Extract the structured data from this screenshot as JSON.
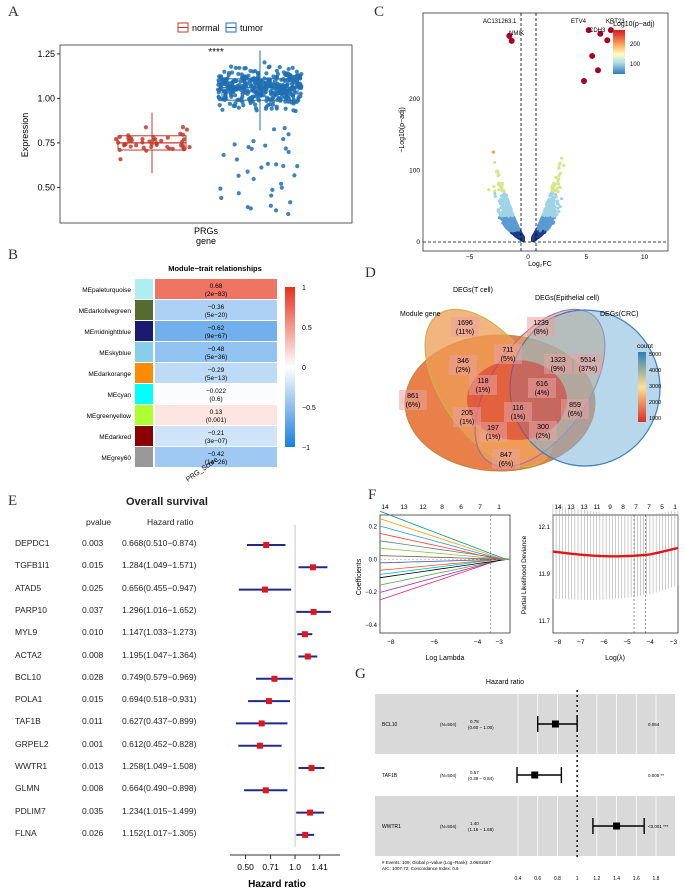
{
  "panels": {
    "A": "A",
    "B": "B",
    "C": "C",
    "D": "D",
    "E": "E",
    "F": "F",
    "G": "G"
  },
  "panelA": {
    "legend_normal": "normal",
    "legend_tumor": "tumor",
    "significance": "****",
    "xlabel": "gene",
    "ylabel": "Expression",
    "xtick": "PRGs",
    "yticks": [
      "0.50",
      "0.75",
      "1.00",
      "1.25"
    ],
    "colors": {
      "normal": "#C0392B",
      "tumor": "#1F6FB2"
    },
    "chart_data": {
      "type": "box",
      "categories": [
        "PRGs"
      ],
      "series": [
        {
          "name": "normal",
          "median": 0.75,
          "q1": 0.71,
          "q3": 0.79,
          "min": 0.58,
          "max": 0.92
        },
        {
          "name": "tumor",
          "median": 1.06,
          "q1": 0.99,
          "q3": 1.11,
          "min": 0.82,
          "max": 1.27
        }
      ],
      "ylim": [
        0.3,
        1.3
      ]
    }
  },
  "panelB": {
    "title": "Module−trait relationships",
    "xlabel": "PRG_Score",
    "legend_ticks": [
      "1",
      "0.5",
      "0",
      "−0.5",
      "−1"
    ],
    "modules": [
      {
        "name": "MEpaleturquoise",
        "color": "#AFEEEE",
        "r": "0.68",
        "p": "(2e−83)",
        "v": 0.68
      },
      {
        "name": "MEdarkolivegreen",
        "color": "#556B2F",
        "r": "−0.36",
        "p": "(5e−20)",
        "v": -0.36
      },
      {
        "name": "MEmidnightblue",
        "color": "#191970",
        "r": "−0.62",
        "p": "(9e−67)",
        "v": -0.62
      },
      {
        "name": "MEskyblue",
        "color": "#87CEEB",
        "r": "−0.48",
        "p": "(5e−36)",
        "v": -0.48
      },
      {
        "name": "MEdarkorange",
        "color": "#FF8C00",
        "r": "−0.29",
        "p": "(5e−13)",
        "v": -0.29
      },
      {
        "name": "MEcyan",
        "color": "#00FFFF",
        "r": "−0.022",
        "p": "(0.6)",
        "v": -0.022
      },
      {
        "name": "MEgreenyellow",
        "color": "#ADFF2F",
        "r": "0.13",
        "p": "(0.001)",
        "v": 0.13
      },
      {
        "name": "MEdarkred",
        "color": "#8B0000",
        "r": "−0.21",
        "p": "(3e−07)",
        "v": -0.21
      },
      {
        "name": "MEgrey60",
        "color": "#999999",
        "r": "−0.42",
        "p": "(1e−26)",
        "v": -0.42
      }
    ]
  },
  "panelC": {
    "ylabel": "−Log10(p−adj)",
    "xlabel": "Log₂FC",
    "xticks": [
      "−5",
      "0",
      "5",
      "10"
    ],
    "yticks": [
      "0",
      "100",
      "200"
    ],
    "legend_title": "−Log10(p−adj)",
    "legend_ticks": [
      "200",
      "100"
    ],
    "genes": [
      "AC131263.1",
      "NMIK",
      "ETV4",
      "CDH3",
      "KRT23"
    ]
  },
  "panelD": {
    "sets": [
      "Module gene",
      "DEGs(T cell)",
      "DEGs(Epithelial cell)",
      "DEGs(CRC)"
    ],
    "legend_title": "count",
    "legend_ticks": [
      "5000",
      "4000",
      "3000",
      "2000",
      "1000"
    ],
    "regions": [
      {
        "n": "1696",
        "pct": "(11%)"
      },
      {
        "n": "1239",
        "pct": "(8%)"
      },
      {
        "n": "5514",
        "pct": "(37%)"
      },
      {
        "n": "861",
        "pct": "(6%)"
      },
      {
        "n": "346",
        "pct": "(2%)"
      },
      {
        "n": "711",
        "pct": "(5%)"
      },
      {
        "n": "1323",
        "pct": "(9%)"
      },
      {
        "n": "118",
        "pct": "(1%)"
      },
      {
        "n": "616",
        "pct": "(4%)"
      },
      {
        "n": "205",
        "pct": "(1%)"
      },
      {
        "n": "116",
        "pct": "(1%)"
      },
      {
        "n": "859",
        "pct": "(6%)"
      },
      {
        "n": "197",
        "pct": "(1%)"
      },
      {
        "n": "300",
        "pct": "(2%)"
      },
      {
        "n": "847",
        "pct": "(6%)"
      }
    ]
  },
  "panelE": {
    "title": "Overall survival",
    "col_pvalue": "pvalue",
    "col_hr": "Hazard ratio",
    "xlabel": "Hazard ratio",
    "xticks": [
      "0.50",
      "0.71",
      "1.0",
      "1.41"
    ],
    "rows": [
      {
        "gene": "DEPDC1",
        "p": "0.003",
        "hr": "0.668(0.510−0.874)",
        "est": 0.668,
        "lo": 0.51,
        "hi": 0.874
      },
      {
        "gene": "TGFB1I1",
        "p": "0.015",
        "hr": "1.284(1.049−1.571)",
        "est": 1.284,
        "lo": 1.049,
        "hi": 1.571
      },
      {
        "gene": "ATAD5",
        "p": "0.025",
        "hr": "0.656(0.455−0.947)",
        "est": 0.656,
        "lo": 0.455,
        "hi": 0.947
      },
      {
        "gene": "PARP10",
        "p": "0.037",
        "hr": "1.296(1.016−1.652)",
        "est": 1.296,
        "lo": 1.016,
        "hi": 1.652
      },
      {
        "gene": "MYL9",
        "p": "0.010",
        "hr": "1.147(1.033−1.273)",
        "est": 1.147,
        "lo": 1.033,
        "hi": 1.273
      },
      {
        "gene": "ACTA2",
        "p": "0.008",
        "hr": "1.195(1.047−1.364)",
        "est": 1.195,
        "lo": 1.047,
        "hi": 1.364
      },
      {
        "gene": "BCL10",
        "p": "0.028",
        "hr": "0.749(0.579−0.969)",
        "est": 0.749,
        "lo": 0.579,
        "hi": 0.969
      },
      {
        "gene": "POLA1",
        "p": "0.015",
        "hr": "0.694(0.518−0.931)",
        "est": 0.694,
        "lo": 0.518,
        "hi": 0.931
      },
      {
        "gene": "TAF1B",
        "p": "0.011",
        "hr": "0.627(0.437−0.899)",
        "est": 0.627,
        "lo": 0.437,
        "hi": 0.899
      },
      {
        "gene": "GRPEL2",
        "p": "0.001",
        "hr": "0.612(0.452−0.828)",
        "est": 0.612,
        "lo": 0.452,
        "hi": 0.828
      },
      {
        "gene": "WWTR1",
        "p": "0.013",
        "hr": "1.258(1.049−1.508)",
        "est": 1.258,
        "lo": 1.049,
        "hi": 1.508
      },
      {
        "gene": "GLMN",
        "p": "0.008",
        "hr": "0.664(0.490−0.898)",
        "est": 0.664,
        "lo": 0.49,
        "hi": 0.898
      },
      {
        "gene": "PDLIM7",
        "p": "0.035",
        "hr": "1.234(1.015−1.499)",
        "est": 1.234,
        "lo": 1.015,
        "hi": 1.499
      },
      {
        "gene": "FLNA",
        "p": "0.026",
        "hr": "1.152(1.017−1.305)",
        "est": 1.152,
        "lo": 1.017,
        "hi": 1.305
      }
    ]
  },
  "panelF": {
    "left_top": [
      "14",
      "13",
      "12",
      "8",
      "6",
      "7",
      "1"
    ],
    "left_xticks": [
      "−8",
      "−6",
      "−4",
      "−3"
    ],
    "left_yticks": [
      "0.2",
      "0.0",
      "−0.2",
      "−0.4"
    ],
    "left_xlabel": "Log Lambda",
    "left_ylabel": "Coefficients",
    "right_top": [
      "14",
      "13",
      "13",
      "11",
      "9",
      "8",
      "7",
      "7",
      "5",
      "1"
    ],
    "right_xticks": [
      "−8",
      "−7",
      "−6",
      "−5",
      "−4",
      "−3"
    ],
    "right_yticks": [
      "12.1",
      "11.9",
      "11.7"
    ],
    "right_xlabel": "Log(λ)",
    "right_ylabel": "Partial Likelihood Deviance"
  },
  "panelG": {
    "title": "Hazard ratio",
    "rows": [
      {
        "gene": "BCL10",
        "n": "(N=504)",
        "hr": "0.78",
        "ci": "(0.60 − 1.00)",
        "p": "0.054",
        "est": 0.78,
        "lo": 0.6,
        "hi": 1.0
      },
      {
        "gene": "TAF1B",
        "n": "(N=504)",
        "hr": "0.57",
        "ci": "(0.39 − 0.84)",
        "p": "0.005 **",
        "est": 0.57,
        "lo": 0.39,
        "hi": 0.84
      },
      {
        "gene": "WWTR1",
        "n": "(N=504)",
        "hr": "1.40",
        "ci": "(1.16 − 1.68)",
        "p": "<0.001 ***",
        "est": 1.4,
        "lo": 1.16,
        "hi": 1.68
      }
    ],
    "footnote1": "# Events: 109; Global p−value (Log−Rank): 3.0681567",
    "footnote2": "AIC: 1007.72; Concordance Index: 0.6",
    "xticks": [
      "0.4",
      "0.6",
      "0.8",
      "1",
      "1.2",
      "1.4",
      "1.6",
      "1.8"
    ]
  }
}
